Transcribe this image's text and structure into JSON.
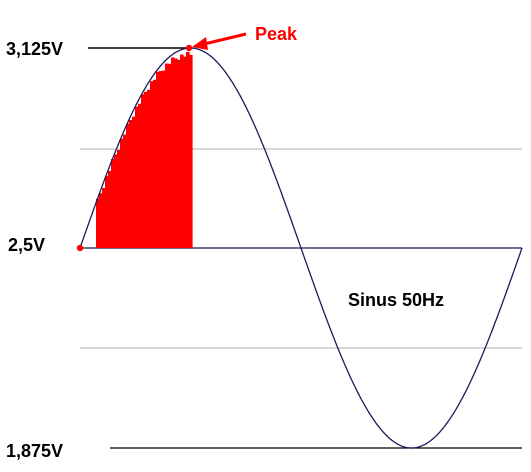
{
  "labels": {
    "v_max": "3,125V",
    "v_mid": "2,5V",
    "v_min": "1,875V",
    "peak": "Peak",
    "signal": "Sinus 50Hz"
  },
  "colors": {
    "curve": "#1a1a5e",
    "reference_line": "#000000",
    "grid_line": "#b0b0b0",
    "fill": "#ff0000",
    "peak_label": "#ff0000",
    "axis_text": "#000000"
  },
  "waveform": {
    "type": "sine",
    "frequency_hz": 50,
    "vmax": 3.125,
    "vmid": 2.5,
    "vmin": 1.875,
    "cycles_shown": 1
  }
}
